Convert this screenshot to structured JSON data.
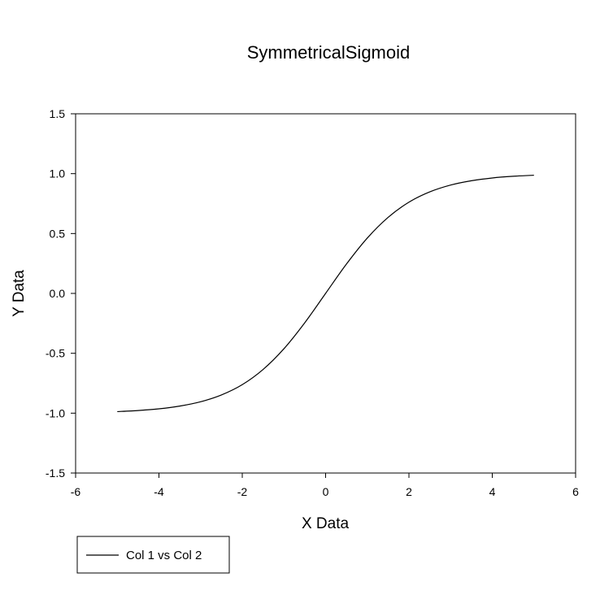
{
  "chart_data": {
    "type": "line",
    "title": "SymmetricalSigmoid",
    "xlabel": "X Data",
    "ylabel": "Y Data",
    "xlim": [
      -6,
      6
    ],
    "ylim": [
      -1.5,
      1.5
    ],
    "x_ticks": [
      -6,
      -4,
      -2,
      0,
      2,
      4,
      6
    ],
    "y_ticks": [
      -1.5,
      -1.0,
      -0.5,
      0.0,
      0.5,
      1.0,
      1.5
    ],
    "x_tick_labels": [
      "-6",
      "-4",
      "-2",
      "0",
      "2",
      "4",
      "6"
    ],
    "y_tick_labels": [
      "-1.5",
      "-1.0",
      "-0.5",
      "0.0",
      "0.5",
      "1.0",
      "1.5"
    ],
    "grid": false,
    "legend_position": "bottom-left",
    "series": [
      {
        "name": "Col 1 vs Col 2",
        "color": "#000000",
        "x": [
          -5.0,
          -4.5,
          -4.0,
          -3.5,
          -3.0,
          -2.5,
          -2.0,
          -1.5,
          -1.0,
          -0.5,
          0.0,
          0.5,
          1.0,
          1.5,
          2.0,
          2.5,
          3.0,
          3.5,
          4.0,
          4.5,
          5.0
        ],
        "y": [
          -0.987,
          -0.978,
          -0.964,
          -0.941,
          -0.905,
          -0.848,
          -0.762,
          -0.635,
          -0.462,
          -0.245,
          0.0,
          0.245,
          0.462,
          0.635,
          0.762,
          0.848,
          0.905,
          0.941,
          0.964,
          0.978,
          0.987
        ]
      }
    ]
  }
}
